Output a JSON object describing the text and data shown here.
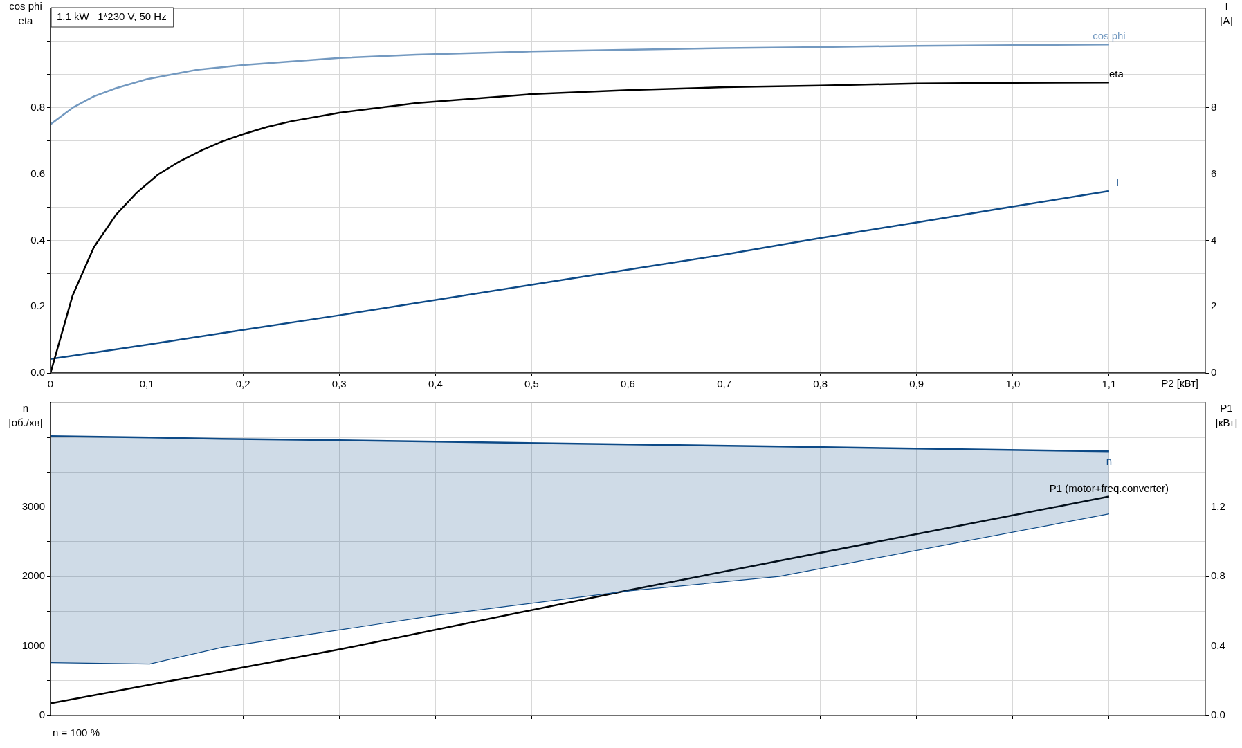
{
  "chart_data": [
    {
      "type": "line",
      "title": "1.1 kW   1*230 V, 50 Hz",
      "xlabel": "P2 [кВт]",
      "ylabel": "cos phi\neta",
      "y2label": "I\n[A]",
      "xlim": [
        0,
        1.2
      ],
      "xticks": [
        0,
        {
          "value": 0.1,
          "label": "0,1"
        },
        {
          "value": 0.2,
          "label": "0,2"
        },
        {
          "value": 0.3,
          "label": "0,3"
        },
        {
          "value": 0.4,
          "label": "0,4"
        },
        {
          "value": 0.5,
          "label": "0,5"
        },
        {
          "value": 0.6,
          "label": "0,6"
        },
        {
          "value": 0.7,
          "label": "0,7"
        },
        {
          "value": 0.8,
          "label": "0,8"
        },
        {
          "value": 0.9,
          "label": "0,9"
        },
        {
          "value": 1.0,
          "label": "1,0"
        },
        {
          "value": 1.1,
          "label": "1,1"
        }
      ],
      "ylim": [
        0,
        1.1
      ],
      "yticks": [
        {
          "value": 0,
          "label": "0.0"
        },
        {
          "value": 0.1,
          "label": null
        },
        0.2,
        {
          "value": 0.3,
          "label": null
        },
        0.4,
        {
          "value": 0.5,
          "label": null
        },
        0.6,
        {
          "value": 0.7,
          "label": null
        },
        0.8,
        {
          "value": 0.9,
          "label": null
        },
        {
          "value": 1.0,
          "label": null
        }
      ],
      "y2lim": [
        0,
        11
      ],
      "y2ticks": [
        0,
        2,
        4,
        6,
        8
      ],
      "grid": true,
      "marker": "none",
      "series": [
        {
          "name": "cos phi",
          "color": "#7399c0",
          "x": [
            0,
            0.023,
            0.045,
            0.068,
            0.1,
            0.153,
            0.2,
            0.3,
            0.38,
            0.5,
            0.7,
            0.8,
            0.9,
            1.0,
            1.1
          ],
          "values": [
            0.75,
            0.8,
            0.834,
            0.859,
            0.886,
            0.915,
            0.929,
            0.95,
            0.96,
            0.97,
            0.98,
            0.983,
            0.987,
            0.989,
            0.991
          ]
        },
        {
          "name": "eta",
          "color": "#000000",
          "x": [
            0,
            0.023,
            0.045,
            0.068,
            0.09,
            0.112,
            0.134,
            0.158,
            0.178,
            0.2,
            0.225,
            0.25,
            0.3,
            0.38,
            0.5,
            0.6,
            0.7,
            0.8,
            0.9,
            1.0,
            1.1
          ],
          "values": [
            0,
            0.234,
            0.379,
            0.477,
            0.545,
            0.599,
            0.638,
            0.673,
            0.698,
            0.72,
            0.742,
            0.759,
            0.785,
            0.814,
            0.841,
            0.853,
            0.862,
            0.867,
            0.873,
            0.875,
            0.876
          ]
        },
        {
          "name": "I",
          "color": "#0d4a87",
          "axis": "y2",
          "x": [
            0,
            0.1,
            0.2,
            0.3,
            0.5,
            0.7,
            0.8,
            0.9,
            1.0,
            1.1
          ],
          "values": [
            0.42,
            0.85,
            1.3,
            1.74,
            2.66,
            3.57,
            4.07,
            4.54,
            5.02,
            5.49
          ]
        }
      ]
    },
    {
      "type": "line",
      "ylabel": "n\n[об./хв]",
      "y2label": "P1\n[кВт]",
      "annotations": [
        "n = 100 %"
      ],
      "tick_labels": "y",
      "xlim": [
        0,
        1.2
      ],
      "xticks": [
        0,
        0.1,
        0.2,
        0.3,
        0.4,
        0.5,
        0.6,
        0.7,
        0.8,
        0.9,
        1.0,
        1.1
      ],
      "ylim": [
        0,
        4500
      ],
      "yticks": [
        0,
        {
          "value": 500,
          "label": null
        },
        1000,
        {
          "value": 1500,
          "label": null
        },
        2000,
        {
          "value": 2500,
          "label": null
        },
        3000,
        {
          "value": 3500,
          "label": null
        },
        {
          "value": 4000,
          "label": null
        }
      ],
      "y2lim": [
        0,
        1.8
      ],
      "y2ticks": [
        {
          "value": 0,
          "label": "0.0"
        },
        0.4,
        0.8,
        1.2
      ],
      "grid": true,
      "marker": "none",
      "series": [
        {
          "name": "n",
          "color": "#0d4a87",
          "x": [
            0,
            0.103,
            0.178,
            0.3,
            0.4,
            0.6,
            0.757,
            1.1
          ],
          "values": [
            4020,
            4000,
            3980,
            3960,
            3940,
            3900,
            3870,
            3800
          ],
          "lower": [
            760,
            740,
            980,
            1230,
            1440,
            1790,
            2000,
            2900
          ],
          "upper": [
            4020,
            4000,
            3980,
            3960,
            3940,
            3900,
            3870,
            3800
          ]
        },
        {
          "color": "#0d4a87",
          "x": [
            0,
            0.103,
            0.178,
            0.3,
            0.4,
            0.6,
            0.757,
            1.1
          ],
          "values": [
            760,
            740,
            980,
            1230,
            1440,
            1790,
            2000,
            2900
          ]
        },
        {
          "name": "P1 (motor+freq.converter)",
          "color": "#000000",
          "axis": "y2",
          "x": [
            0,
            0.3,
            0.6,
            1.1
          ],
          "values": [
            0.07,
            0.38,
            0.72,
            1.26
          ]
        }
      ]
    }
  ]
}
